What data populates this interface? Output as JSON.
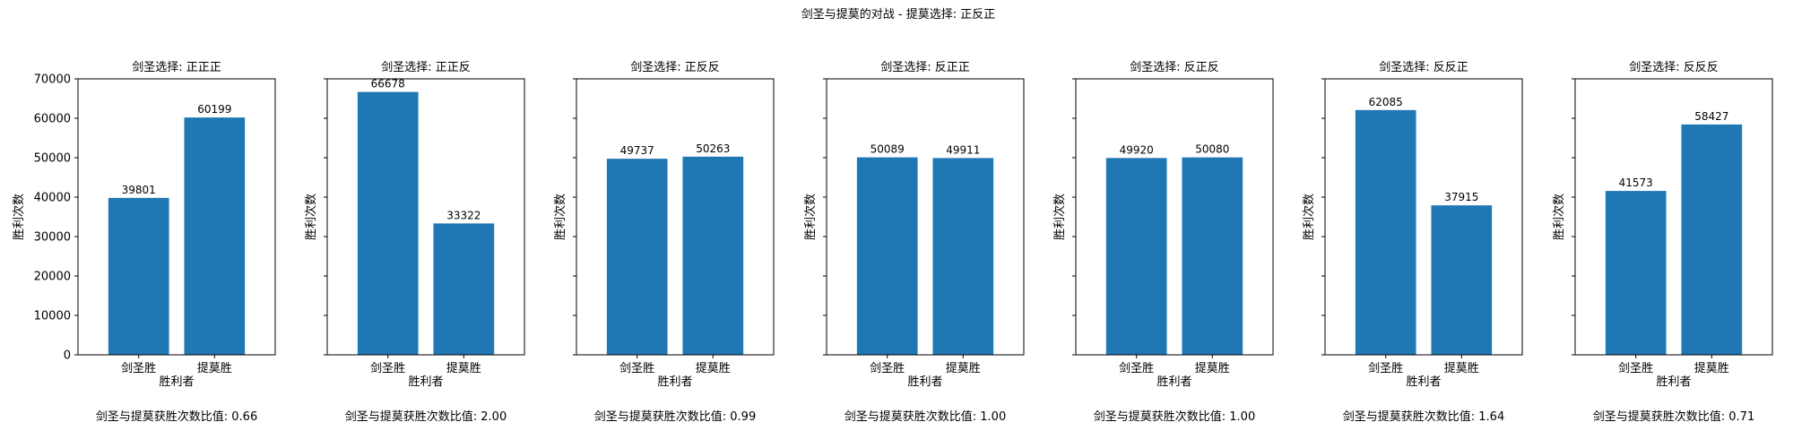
{
  "figure": {
    "suptitle": "剑圣与提莫的对战 - 提莫选择: 正反正"
  },
  "colors": {
    "bar": "#1f77b4",
    "axis": "#000000",
    "background": "#ffffff"
  },
  "chart_data": [
    {
      "type": "bar",
      "title": "剑圣选择: 正正正",
      "categories": [
        "剑圣胜",
        "提莫胜"
      ],
      "values": [
        39801,
        60199
      ],
      "xlabel": "胜利者",
      "ylabel": "胜利次数",
      "ylim": [
        0,
        70000
      ],
      "yticks": [
        0,
        10000,
        20000,
        30000,
        40000,
        50000,
        60000,
        70000
      ],
      "ytick_labels_visible": true,
      "ratio_text": "剑圣与提莫获胜次数比值: 0.66",
      "grid": false,
      "legend": "none"
    },
    {
      "type": "bar",
      "title": "剑圣选择: 正正反",
      "categories": [
        "剑圣胜",
        "提莫胜"
      ],
      "values": [
        66678,
        33322
      ],
      "xlabel": "胜利者",
      "ylabel": "胜利次数",
      "ylim": [
        0,
        70000
      ],
      "yticks": [
        0,
        10000,
        20000,
        30000,
        40000,
        50000,
        60000,
        70000
      ],
      "ytick_labels_visible": false,
      "ratio_text": "剑圣与提莫获胜次数比值: 2.00",
      "grid": false,
      "legend": "none"
    },
    {
      "type": "bar",
      "title": "剑圣选择: 正反反",
      "categories": [
        "剑圣胜",
        "提莫胜"
      ],
      "values": [
        49737,
        50263
      ],
      "xlabel": "胜利者",
      "ylabel": "胜利次数",
      "ylim": [
        0,
        70000
      ],
      "yticks": [
        0,
        10000,
        20000,
        30000,
        40000,
        50000,
        60000,
        70000
      ],
      "ytick_labels_visible": false,
      "ratio_text": "剑圣与提莫获胜次数比值: 0.99",
      "grid": false,
      "legend": "none"
    },
    {
      "type": "bar",
      "title": "剑圣选择: 反正正",
      "categories": [
        "剑圣胜",
        "提莫胜"
      ],
      "values": [
        50089,
        49911
      ],
      "xlabel": "胜利者",
      "ylabel": "胜利次数",
      "ylim": [
        0,
        70000
      ],
      "yticks": [
        0,
        10000,
        20000,
        30000,
        40000,
        50000,
        60000,
        70000
      ],
      "ytick_labels_visible": false,
      "ratio_text": "剑圣与提莫获胜次数比值: 1.00",
      "grid": false,
      "legend": "none"
    },
    {
      "type": "bar",
      "title": "剑圣选择: 反正反",
      "categories": [
        "剑圣胜",
        "提莫胜"
      ],
      "values": [
        49920,
        50080
      ],
      "xlabel": "胜利者",
      "ylabel": "胜利次数",
      "ylim": [
        0,
        70000
      ],
      "yticks": [
        0,
        10000,
        20000,
        30000,
        40000,
        50000,
        60000,
        70000
      ],
      "ytick_labels_visible": false,
      "ratio_text": "剑圣与提莫获胜次数比值: 1.00",
      "grid": false,
      "legend": "none"
    },
    {
      "type": "bar",
      "title": "剑圣选择: 反反正",
      "categories": [
        "剑圣胜",
        "提莫胜"
      ],
      "values": [
        62085,
        37915
      ],
      "xlabel": "胜利者",
      "ylabel": "胜利次数",
      "ylim": [
        0,
        70000
      ],
      "yticks": [
        0,
        10000,
        20000,
        30000,
        40000,
        50000,
        60000,
        70000
      ],
      "ytick_labels_visible": false,
      "ratio_text": "剑圣与提莫获胜次数比值: 1.64",
      "grid": false,
      "legend": "none"
    },
    {
      "type": "bar",
      "title": "剑圣选择: 反反反",
      "categories": [
        "剑圣胜",
        "提莫胜"
      ],
      "values": [
        41573,
        58427
      ],
      "xlabel": "胜利者",
      "ylabel": "胜利次数",
      "ylim": [
        0,
        70000
      ],
      "yticks": [
        0,
        10000,
        20000,
        30000,
        40000,
        50000,
        60000,
        70000
      ],
      "ytick_labels_visible": false,
      "ratio_text": "剑圣与提莫获胜次数比值: 0.71",
      "grid": false,
      "legend": "none"
    }
  ]
}
